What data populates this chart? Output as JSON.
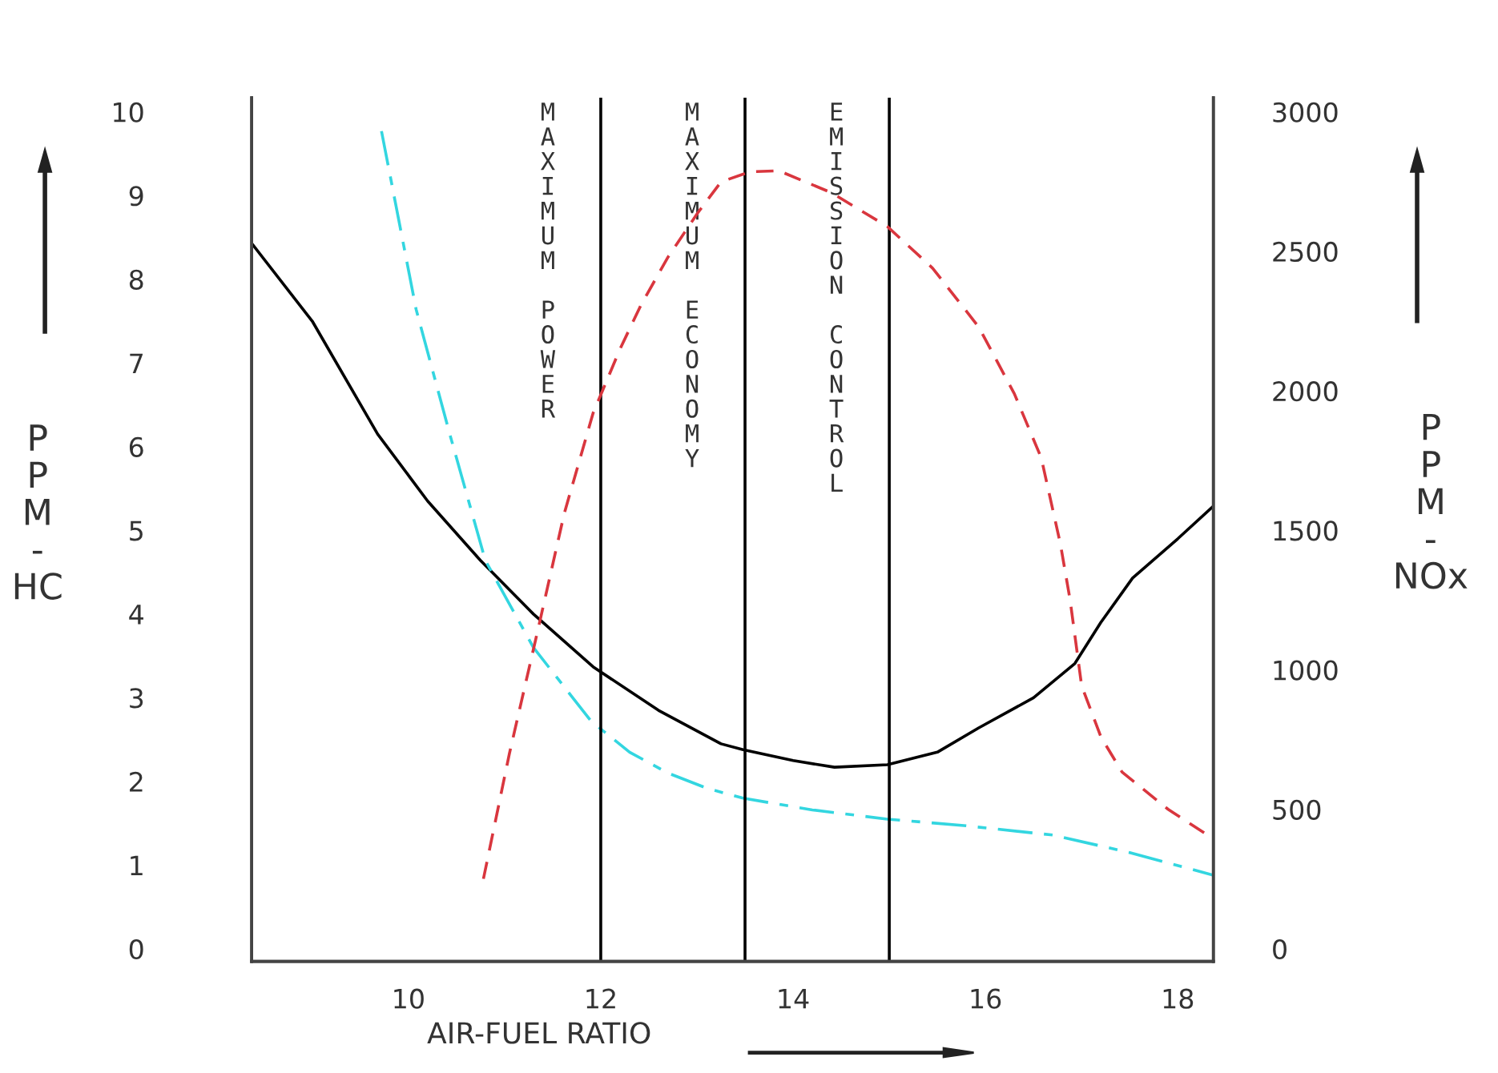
{
  "chart_data": {
    "type": "line",
    "xlabel": "AIR-FUEL RATIO",
    "ylabel": "P\nP\nM\n-\nHC",
    "y2label": "P\nP\nM\n-\nNOx",
    "xlim": [
      8.37,
      18.37
    ],
    "xticks": [
      10,
      12,
      14,
      16,
      18
    ],
    "ylim": [
      -0.15,
      10.17
    ],
    "yticks": [
      0,
      1,
      2,
      3,
      4,
      5,
      6,
      7,
      8,
      9,
      10
    ],
    "y2lim": [
      -45,
      3051
    ],
    "y2ticks": [
      0,
      500,
      1000,
      1500,
      2000,
      2500,
      3000
    ],
    "grid": false,
    "series": [
      {
        "color": "#000000",
        "line_style": "solid",
        "x": [
          8.37,
          9.0,
          9.68,
          10.2,
          10.75,
          11.3,
          11.92,
          12.6,
          13.25,
          13.48,
          14.0,
          14.43,
          14.98,
          15.5,
          15.93,
          16.5,
          16.93,
          17.2,
          17.53,
          18.0,
          18.37
        ],
        "values": [
          8.43,
          7.5,
          6.15,
          5.35,
          4.64,
          4.0,
          3.37,
          2.85,
          2.45,
          2.38,
          2.25,
          2.17,
          2.2,
          2.35,
          2.64,
          3.0,
          3.41,
          3.9,
          4.43,
          4.9,
          5.29
        ]
      },
      {
        "color": "#33d6e0",
        "line_style": "dashdot",
        "x": [
          9.72,
          10.08,
          10.43,
          10.8,
          11.3,
          11.9,
          12.3,
          12.7,
          13.1,
          13.48,
          14.2,
          14.98,
          15.8,
          16.7,
          17.5,
          18.37
        ],
        "values": [
          9.77,
          7.64,
          6.15,
          4.64,
          3.6,
          2.72,
          2.35,
          2.1,
          1.92,
          1.8,
          1.66,
          1.55,
          1.47,
          1.36,
          1.15,
          0.88
        ]
      },
      {
        "color": "#d9363e",
        "line_style": "dashed",
        "axis": "y2",
        "x": [
          10.78,
          11.05,
          11.35,
          11.62,
          11.92,
          12.2,
          12.42,
          12.7,
          13.0,
          13.25,
          13.55,
          13.85,
          14.4,
          14.98,
          15.45,
          15.93,
          16.3,
          16.58,
          16.78,
          16.88,
          17.0,
          17.2,
          17.42,
          17.9,
          18.37
        ],
        "values": [
          251,
          700,
          1149,
          1560,
          1920,
          2150,
          2309,
          2480,
          2634,
          2749,
          2785,
          2789,
          2710,
          2589,
          2440,
          2229,
          1990,
          1760,
          1450,
          1251,
          943,
          760,
          634,
          500,
          394
        ]
      }
    ],
    "ref_lines": [
      {
        "axis": "x",
        "value": 12,
        "label": "MAXIMUM POWER",
        "color": "#000000"
      },
      {
        "axis": "x",
        "value": 13.5,
        "label": "MAXIMUM ECONOMY",
        "color": "#000000"
      },
      {
        "axis": "x",
        "value": 15,
        "label": "EMISSION CONTROL",
        "color": "#000000"
      }
    ]
  }
}
